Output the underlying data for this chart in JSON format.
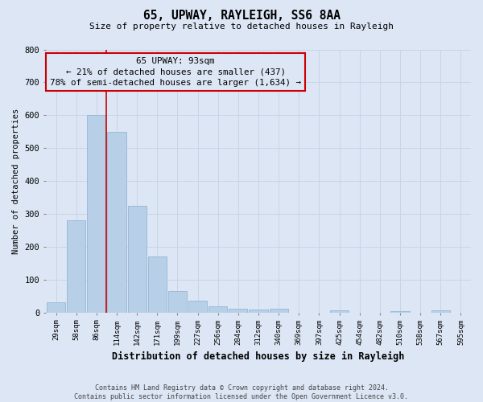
{
  "title": "65, UPWAY, RAYLEIGH, SS6 8AA",
  "subtitle": "Size of property relative to detached houses in Rayleigh",
  "xlabel": "Distribution of detached houses by size in Rayleigh",
  "ylabel": "Number of detached properties",
  "footer_line1": "Contains HM Land Registry data © Crown copyright and database right 2024.",
  "footer_line2": "Contains public sector information licensed under the Open Government Licence v3.0.",
  "categories": [
    "29sqm",
    "58sqm",
    "86sqm",
    "114sqm",
    "142sqm",
    "171sqm",
    "199sqm",
    "227sqm",
    "256sqm",
    "284sqm",
    "312sqm",
    "340sqm",
    "369sqm",
    "397sqm",
    "425sqm",
    "454sqm",
    "482sqm",
    "510sqm",
    "538sqm",
    "567sqm",
    "595sqm"
  ],
  "values": [
    30,
    280,
    600,
    550,
    325,
    170,
    65,
    35,
    18,
    12,
    8,
    12,
    0,
    0,
    7,
    0,
    0,
    3,
    0,
    7,
    0
  ],
  "bar_color": "#b8cfe8",
  "bar_edge_color": "#8ab0d0",
  "grid_color": "#c8d4e8",
  "background_color": "#dce6f5",
  "annotation_box_text": "65 UPWAY: 93sqm\n← 21% of detached houses are smaller (437)\n78% of semi-detached houses are larger (1,634) →",
  "annotation_box_color": "#cc0000",
  "vline_color": "#cc0000",
  "ylim": [
    0,
    800
  ],
  "yticks": [
    0,
    100,
    200,
    300,
    400,
    500,
    600,
    700,
    800
  ],
  "vline_position": 2.5
}
